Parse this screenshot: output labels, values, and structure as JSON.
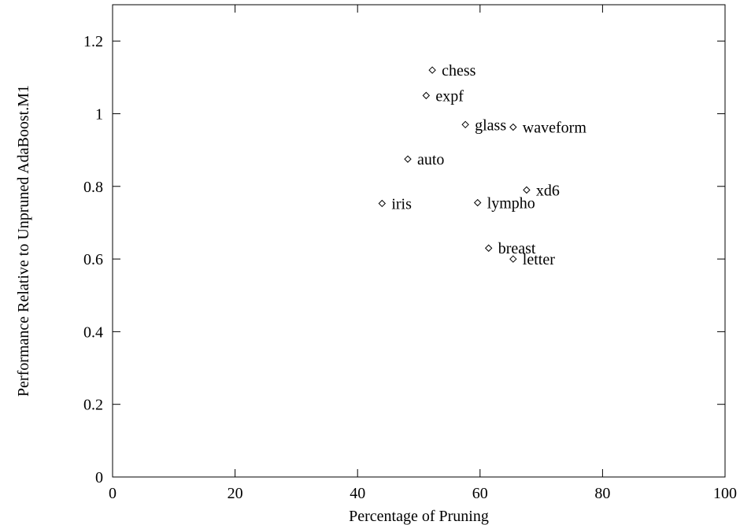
{
  "chart_data": {
    "type": "scatter",
    "title": "",
    "xlabel": "Percentage of Pruning",
    "ylabel": "Performance Relative to Unpruned AdaBoost.M1",
    "xlim": [
      0,
      100
    ],
    "ylim": [
      0,
      1.3
    ],
    "x_ticks": [
      0,
      20,
      40,
      60,
      80,
      100
    ],
    "y_ticks": [
      0,
      0.2,
      0.4,
      0.6,
      0.8,
      1,
      1.2
    ],
    "x_tick_labels": [
      "0",
      "20",
      "40",
      "60",
      "80",
      "100"
    ],
    "y_tick_labels": [
      "0",
      "0.2",
      "0.4",
      "0.6",
      "0.8",
      "1",
      "1.2"
    ],
    "grid": false,
    "marker": "diamond",
    "points": [
      {
        "label": "chess",
        "x": 52.2,
        "y": 1.12
      },
      {
        "label": "expf",
        "x": 51.2,
        "y": 1.05
      },
      {
        "label": "glass",
        "x": 57.6,
        "y": 0.97
      },
      {
        "label": "waveform",
        "x": 65.4,
        "y": 0.963
      },
      {
        "label": "auto",
        "x": 48.2,
        "y": 0.875
      },
      {
        "label": "xd6",
        "x": 67.6,
        "y": 0.79
      },
      {
        "label": "iris",
        "x": 44.0,
        "y": 0.753
      },
      {
        "label": "lympho",
        "x": 59.6,
        "y": 0.755
      },
      {
        "label": "breast",
        "x": 61.4,
        "y": 0.63
      },
      {
        "label": "letter",
        "x": 65.4,
        "y": 0.6
      }
    ]
  }
}
